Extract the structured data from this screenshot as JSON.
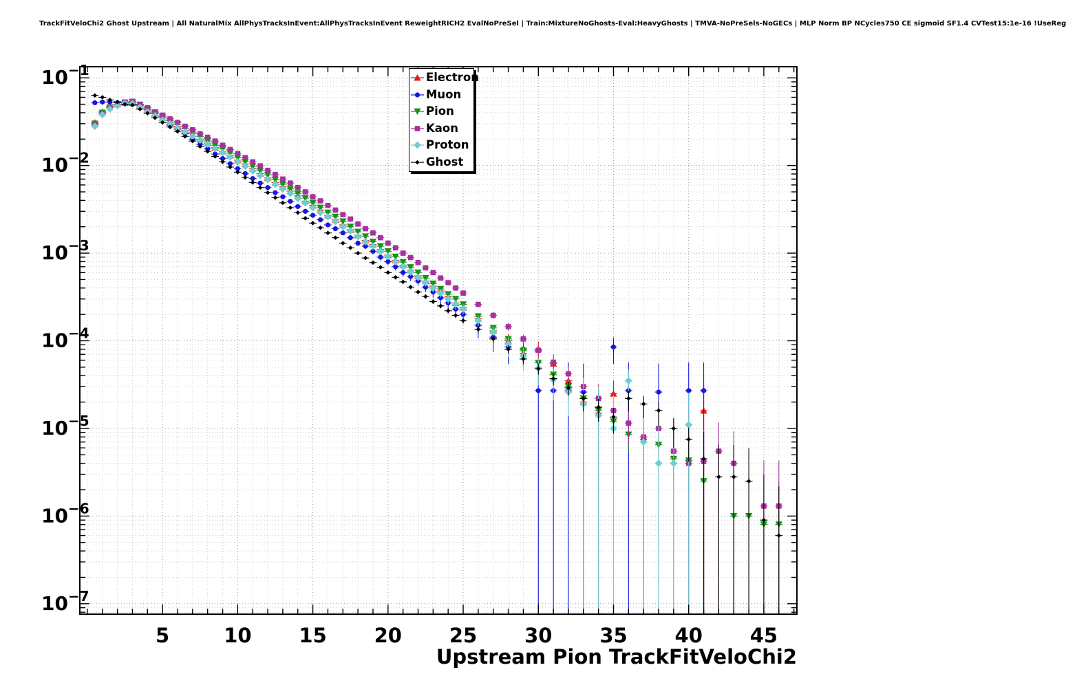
{
  "chart_data": {
    "type": "scatter",
    "title": "TrackFitVeloChi2 Ghost Upstream | All NaturalMix AllPhysTracksInEvent:AllPhysTracksInEvent ReweightRICH2 EvalNoPreSel | Train:MixtureNoGhosts-Eval:HeavyGhosts | TMVA-NoPreSels-NoGECs | MLP Norm BP NCycles750 CE sigmoid SF1.4 CVTest15:1e-16 !UseReg",
    "xlabel": "Upstream Pion TrackFitVeloChi2",
    "ylabel": "",
    "x_scale": "linear",
    "y_scale": "log",
    "grid": true,
    "legend_position": "top-center",
    "xlim": [
      -0.5,
      47.2
    ],
    "ylim": [
      7.6e-08,
      0.134
    ],
    "x_major_ticks": [
      5,
      10,
      15,
      20,
      25,
      30,
      35,
      40,
      45
    ],
    "y_decades": [
      -1,
      -2,
      -3,
      -4,
      -5,
      -6,
      -7
    ],
    "x": [
      0.5,
      1.0,
      1.5,
      2.0,
      2.5,
      3.0,
      3.5,
      4.0,
      4.5,
      5.0,
      5.5,
      6.0,
      6.5,
      7.0,
      7.5,
      8.0,
      8.5,
      9.0,
      9.5,
      10.0,
      10.5,
      11.0,
      11.5,
      12.0,
      12.5,
      13.0,
      13.5,
      14.0,
      14.5,
      15.0,
      15.5,
      16.0,
      16.5,
      17.0,
      17.5,
      18.0,
      18.5,
      19.0,
      19.5,
      20.0,
      20.5,
      21.0,
      21.5,
      22.0,
      22.5,
      23.0,
      23.5,
      24.0,
      24.5,
      25.0,
      26,
      27,
      28,
      29,
      30,
      31,
      32,
      33,
      34,
      35,
      36,
      37,
      38,
      39,
      40,
      41,
      42,
      43,
      44,
      45,
      46
    ],
    "series": [
      {
        "name": "Electron",
        "color": "#e31a1a",
        "marker": "triangle-up",
        "err_scale": 250000.0,
        "y": [
          0.031,
          0.041,
          0.047,
          0.05,
          0.052,
          0.052,
          0.048,
          0.043,
          0.039,
          0.035,
          0.031,
          0.028,
          0.025,
          0.023,
          0.02,
          0.018,
          0.016,
          0.0145,
          0.013,
          0.0115,
          0.0104,
          0.0092,
          0.0081,
          0.0072,
          0.0064,
          0.0057,
          0.0051,
          0.0045,
          0.0039,
          0.0035,
          0.0031,
          0.0027,
          0.0024,
          0.0021,
          0.00185,
          0.0016,
          0.0014,
          0.00125,
          0.0011,
          0.00095,
          0.00083,
          0.00073,
          0.00064,
          0.00055,
          0.00048,
          0.00042,
          0.00037,
          0.00032,
          0.00027,
          0.00024,
          0.00018,
          0.00013,
          0.0001,
          7.2e-05,
          8e-05,
          5.5e-05,
          3.5e-05,
          2e-05,
          1.5e-05,
          2.5e-05,
          null,
          8e-06,
          null,
          null,
          null,
          1.6e-05,
          null,
          null,
          null,
          null,
          null
        ]
      },
      {
        "name": "Muon",
        "color": "#1717dd",
        "marker": "circle",
        "err_scale": 150000.0,
        "y": [
          0.052,
          0.053,
          0.053,
          0.052,
          0.051,
          0.05,
          0.046,
          0.041,
          0.037,
          0.033,
          0.029,
          0.026,
          0.023,
          0.02,
          0.0175,
          0.0155,
          0.0135,
          0.012,
          0.0105,
          0.0092,
          0.0081,
          0.0071,
          0.0063,
          0.0056,
          0.0049,
          0.0044,
          0.0039,
          0.0034,
          0.003,
          0.0027,
          0.0024,
          0.0021,
          0.0019,
          0.0017,
          0.0015,
          0.0013,
          0.0012,
          0.00105,
          0.0009,
          0.0008,
          0.0007,
          0.0006,
          0.00054,
          0.00048,
          0.00041,
          0.00036,
          0.00031,
          0.00027,
          0.00023,
          0.0002,
          0.00015,
          0.00011,
          8.5e-05,
          8e-05,
          2.7e-05,
          2.7e-05,
          2.7e-05,
          2.6e-05,
          null,
          8.5e-05,
          2.7e-05,
          null,
          2.6e-05,
          null,
          2.7e-05,
          2.7e-05,
          null,
          null,
          null,
          null,
          null
        ]
      },
      {
        "name": "Pion",
        "color": "#169416",
        "marker": "triangle-down",
        "err_scale": 1500000.0,
        "y": [
          0.03,
          0.04,
          0.046,
          0.05,
          0.052,
          0.053,
          0.049,
          0.044,
          0.04,
          0.036,
          0.0325,
          0.0295,
          0.0265,
          0.024,
          0.0215,
          0.019,
          0.017,
          0.0155,
          0.0138,
          0.0123,
          0.011,
          0.0098,
          0.0087,
          0.0078,
          0.0069,
          0.0061,
          0.0054,
          0.0048,
          0.00425,
          0.00375,
          0.0033,
          0.0029,
          0.0026,
          0.0023,
          0.002,
          0.00175,
          0.00155,
          0.00135,
          0.0012,
          0.00105,
          0.00091,
          0.00079,
          0.00069,
          0.0006,
          0.00052,
          0.00045,
          0.00039,
          0.00034,
          0.0003,
          0.00026,
          0.00019,
          0.00014,
          0.000105,
          7.7e-05,
          5.6e-05,
          4.1e-05,
          3e-05,
          2.2e-05,
          1.6e-05,
          1.2e-05,
          8.5e-06,
          7e-06,
          6.5e-06,
          4.5e-06,
          4.3e-06,
          2.5e-06,
          null,
          1e-06,
          1e-06,
          8e-07,
          8e-07
        ]
      },
      {
        "name": "Kaon",
        "color": "#a7309f",
        "marker": "square",
        "err_scale": 700000.0,
        "y": [
          0.029,
          0.039,
          0.046,
          0.05,
          0.053,
          0.054,
          0.05,
          0.0455,
          0.041,
          0.0375,
          0.034,
          0.031,
          0.028,
          0.0255,
          0.023,
          0.021,
          0.019,
          0.017,
          0.0152,
          0.0137,
          0.0123,
          0.011,
          0.0099,
          0.0088,
          0.0079,
          0.007,
          0.0063,
          0.0056,
          0.005,
          0.0044,
          0.00395,
          0.0035,
          0.0031,
          0.00275,
          0.00245,
          0.00215,
          0.0019,
          0.0017,
          0.0015,
          0.0013,
          0.00115,
          0.001,
          0.00089,
          0.00078,
          0.00068,
          0.0006,
          0.00052,
          0.00046,
          0.0004,
          0.00035,
          0.00026,
          0.000195,
          0.000145,
          0.000105,
          7.8e-05,
          5.7e-05,
          4.2e-05,
          3e-05,
          2.2e-05,
          1.6e-05,
          1.15e-05,
          8e-06,
          1e-05,
          5.5e-06,
          4e-06,
          4.2e-06,
          5.5e-06,
          4e-06,
          null,
          1.3e-06,
          1.3e-06
        ]
      },
      {
        "name": "Proton",
        "color": "#6fcfcf",
        "marker": "diamond",
        "err_scale": 250000.0,
        "y": [
          0.028,
          0.038,
          0.044,
          0.048,
          0.051,
          0.051,
          0.046,
          0.041,
          0.037,
          0.033,
          0.03,
          0.027,
          0.024,
          0.0215,
          0.0195,
          0.0175,
          0.0155,
          0.014,
          0.0125,
          0.011,
          0.0098,
          0.0087,
          0.0077,
          0.0069,
          0.0061,
          0.0054,
          0.0048,
          0.0042,
          0.00375,
          0.0033,
          0.0029,
          0.0026,
          0.0023,
          0.002,
          0.0018,
          0.00155,
          0.00135,
          0.0012,
          0.00105,
          0.00092,
          0.0008,
          0.0007,
          0.00061,
          0.00053,
          0.00046,
          0.0004,
          0.00035,
          0.0003,
          0.00026,
          0.00023,
          0.00017,
          0.000125,
          9.2e-05,
          6.7e-05,
          4.9e-05,
          3.6e-05,
          2.6e-05,
          1.9e-05,
          1.4e-05,
          1e-05,
          3.5e-05,
          7e-06,
          4e-06,
          4e-06,
          1.1e-05,
          null,
          null,
          null,
          null,
          null,
          null
        ]
      },
      {
        "name": "Ghost",
        "color": "#000000",
        "marker": "small-diamond",
        "err_scale": 1000000.0,
        "y": [
          0.063,
          0.06,
          0.056,
          0.053,
          0.05,
          0.049,
          0.044,
          0.0395,
          0.035,
          0.031,
          0.0275,
          0.0245,
          0.0215,
          0.019,
          0.0165,
          0.0145,
          0.0127,
          0.011,
          0.0096,
          0.0084,
          0.0073,
          0.0064,
          0.0056,
          0.0049,
          0.0043,
          0.00375,
          0.0033,
          0.0029,
          0.0025,
          0.0022,
          0.00195,
          0.0017,
          0.0015,
          0.0013,
          0.00115,
          0.001,
          0.00088,
          0.00078,
          0.00069,
          0.0006,
          0.00053,
          0.00047,
          0.00041,
          0.00036,
          0.00032,
          0.00028,
          0.00025,
          0.00022,
          0.000195,
          0.00017,
          0.000135,
          0.000105,
          8e-05,
          6.2e-05,
          4.8e-05,
          3.7e-05,
          2.9e-05,
          2.2e-05,
          1.75e-05,
          1.35e-05,
          2.2e-05,
          1.9e-05,
          1.6e-05,
          1e-05,
          7.5e-06,
          4.5e-06,
          2.8e-06,
          2.8e-06,
          2.5e-06,
          9e-07,
          6e-07
        ]
      }
    ]
  }
}
